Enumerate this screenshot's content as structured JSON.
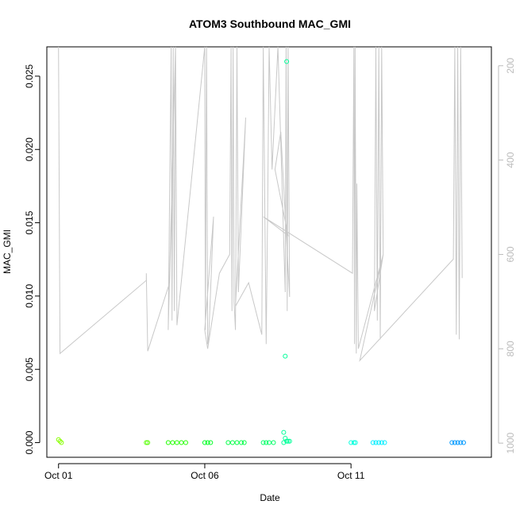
{
  "chart_data": {
    "type": "scatter",
    "title": "ATOM3 Southbound MAC_GMI",
    "xlabel": "Date",
    "ylabel": "MAC_GMI",
    "x_ticks": [
      "Oct 01",
      "Oct 06",
      "Oct 11"
    ],
    "x_range_days": [
      -0.4,
      14.8
    ],
    "ylim": [
      -0.001,
      0.027
    ],
    "y_ticks": [
      "0.000",
      "0.005",
      "0.010",
      "0.015",
      "0.020",
      "0.025"
    ],
    "y2_ticks": [
      "200",
      "400",
      "600",
      "800",
      "1000"
    ],
    "y2lim": [
      1030,
      160
    ],
    "y2_color": "#bbbbbb",
    "grid": false,
    "points": [
      {
        "x": 0.0,
        "y": 0.0002,
        "color": "#88ff00"
      },
      {
        "x": 0.05,
        "y": 0.0001,
        "color": "#88ff00"
      },
      {
        "x": 0.1,
        "y": 0.0,
        "color": "#88ff00"
      },
      {
        "x": 3.0,
        "y": 0.0,
        "color": "#55ff00"
      },
      {
        "x": 3.05,
        "y": 0.0,
        "color": "#55ff00"
      },
      {
        "x": 3.75,
        "y": 0.0,
        "color": "#22ff00"
      },
      {
        "x": 3.9,
        "y": 0.0,
        "color": "#22ff00"
      },
      {
        "x": 4.05,
        "y": 0.0,
        "color": "#22ff00"
      },
      {
        "x": 4.2,
        "y": 0.0,
        "color": "#22ff00"
      },
      {
        "x": 4.35,
        "y": 0.0,
        "color": "#22ff00"
      },
      {
        "x": 5.0,
        "y": 0.0,
        "color": "#00ff22"
      },
      {
        "x": 5.1,
        "y": 0.0,
        "color": "#00ff22"
      },
      {
        "x": 5.2,
        "y": 0.0,
        "color": "#00ff22"
      },
      {
        "x": 5.8,
        "y": 0.0,
        "color": "#00ff44"
      },
      {
        "x": 5.95,
        "y": 0.0,
        "color": "#00ff44"
      },
      {
        "x": 6.1,
        "y": 0.0,
        "color": "#00ff44"
      },
      {
        "x": 6.25,
        "y": 0.0,
        "color": "#00ff44"
      },
      {
        "x": 6.35,
        "y": 0.0,
        "color": "#00ff44"
      },
      {
        "x": 7.0,
        "y": 0.0,
        "color": "#00ff66"
      },
      {
        "x": 7.1,
        "y": 0.0,
        "color": "#00ff66"
      },
      {
        "x": 7.2,
        "y": 0.0,
        "color": "#00ff66"
      },
      {
        "x": 7.35,
        "y": 0.0,
        "color": "#00ff66"
      },
      {
        "x": 7.8,
        "y": 0.026,
        "color": "#00ff99"
      },
      {
        "x": 7.75,
        "y": 0.0059,
        "color": "#00ff99"
      },
      {
        "x": 7.7,
        "y": 0.0007,
        "color": "#00ff99"
      },
      {
        "x": 7.75,
        "y": 0.0003,
        "color": "#00ff99"
      },
      {
        "x": 7.8,
        "y": 0.0001,
        "color": "#00ff99"
      },
      {
        "x": 7.85,
        "y": 0.0001,
        "color": "#00ff99"
      },
      {
        "x": 7.9,
        "y": 0.0001,
        "color": "#00ff99"
      },
      {
        "x": 7.7,
        "y": 0.0,
        "color": "#00ff99"
      },
      {
        "x": 10.0,
        "y": 0.0,
        "color": "#00ffdd"
      },
      {
        "x": 10.1,
        "y": 0.0,
        "color": "#00ffdd"
      },
      {
        "x": 10.15,
        "y": 0.0,
        "color": "#00ffdd"
      },
      {
        "x": 10.75,
        "y": 0.0,
        "color": "#00eeff"
      },
      {
        "x": 10.85,
        "y": 0.0,
        "color": "#00eeff"
      },
      {
        "x": 10.95,
        "y": 0.0,
        "color": "#00eeff"
      },
      {
        "x": 11.05,
        "y": 0.0,
        "color": "#00eeff"
      },
      {
        "x": 11.15,
        "y": 0.0,
        "color": "#00eeff"
      },
      {
        "x": 13.45,
        "y": 0.0,
        "color": "#0099ff"
      },
      {
        "x": 13.55,
        "y": 0.0,
        "color": "#0099ff"
      },
      {
        "x": 13.65,
        "y": 0.0,
        "color": "#0099ff"
      },
      {
        "x": 13.75,
        "y": 0.0,
        "color": "#0099ff"
      },
      {
        "x": 13.85,
        "y": 0.0,
        "color": "#0099ff"
      }
    ],
    "line_series": [
      [
        0.0,
        160
      ],
      [
        0.0,
        160
      ],
      [
        0.05,
        810
      ],
      [
        3.0,
        655
      ],
      [
        3.0,
        640
      ],
      [
        3.05,
        805
      ],
      [
        3.8,
        660
      ],
      [
        4.0,
        160
      ],
      [
        3.75,
        760
      ],
      [
        3.85,
        160
      ],
      [
        3.88,
        740
      ],
      [
        3.92,
        160
      ],
      [
        3.96,
        720
      ],
      [
        4.0,
        160
      ],
      [
        4.05,
        750
      ],
      [
        5.0,
        160
      ],
      [
        5.02,
        760
      ],
      [
        5.06,
        160
      ],
      [
        5.1,
        790
      ],
      [
        5.14,
        770
      ],
      [
        5.3,
        520
      ],
      [
        5.0,
        760
      ],
      [
        5.1,
        800
      ],
      [
        5.5,
        640
      ],
      [
        5.85,
        600
      ],
      [
        5.9,
        160
      ],
      [
        5.93,
        720
      ],
      [
        5.97,
        160
      ],
      [
        6.0,
        700
      ],
      [
        6.05,
        760
      ],
      [
        6.1,
        160
      ],
      [
        6.15,
        680
      ],
      [
        6.4,
        310
      ],
      [
        6.05,
        710
      ],
      [
        6.5,
        660
      ],
      [
        6.95,
        770
      ],
      [
        7.0,
        160
      ],
      [
        7.1,
        790
      ],
      [
        7.15,
        500
      ],
      [
        7.2,
        160
      ],
      [
        7.3,
        420
      ],
      [
        7.5,
        160
      ],
      [
        7.75,
        680
      ],
      [
        7.78,
        160
      ],
      [
        7.82,
        720
      ],
      [
        7.85,
        160
      ],
      [
        7.9,
        690
      ],
      [
        7.6,
        340
      ],
      [
        7.4,
        420
      ],
      [
        7.85,
        560
      ],
      [
        7.0,
        520
      ],
      [
        10.05,
        640
      ],
      [
        10.1,
        160
      ],
      [
        10.12,
        790
      ],
      [
        10.14,
        160
      ],
      [
        10.18,
        810
      ],
      [
        10.2,
        450
      ],
      [
        10.25,
        800
      ],
      [
        11.1,
        600
      ],
      [
        10.8,
        720
      ],
      [
        10.85,
        160
      ],
      [
        10.9,
        740
      ],
      [
        10.95,
        160
      ],
      [
        11.0,
        780
      ],
      [
        11.05,
        160
      ],
      [
        11.1,
        600
      ],
      [
        10.3,
        825
      ],
      [
        13.5,
        610
      ],
      [
        13.55,
        160
      ],
      [
        13.6,
        770
      ],
      [
        13.65,
        160
      ],
      [
        13.7,
        780
      ],
      [
        13.75,
        160
      ],
      [
        13.8,
        650
      ]
    ]
  }
}
